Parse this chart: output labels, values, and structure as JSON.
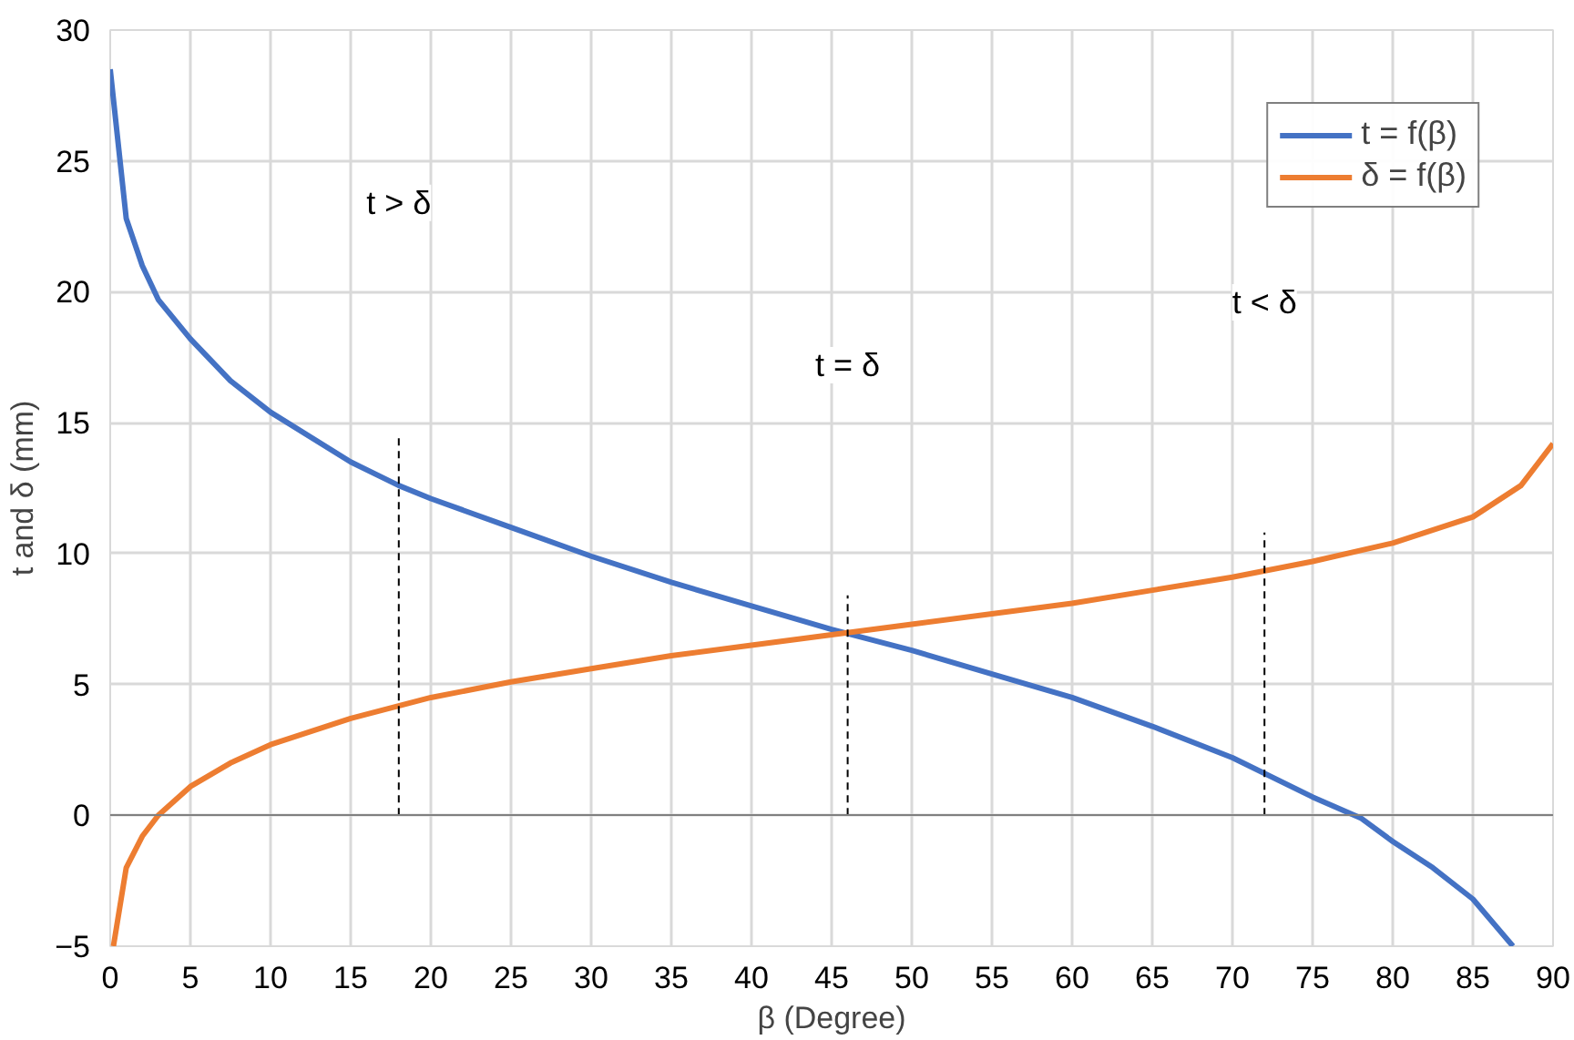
{
  "chart_data": {
    "type": "line",
    "xlabel": "β (Degree)",
    "ylabel": "t and δ (mm)",
    "xlim": [
      0,
      90
    ],
    "ylim": [
      -5,
      30
    ],
    "xticks": [
      0,
      5,
      10,
      15,
      20,
      25,
      30,
      35,
      40,
      45,
      50,
      55,
      60,
      65,
      70,
      75,
      80,
      85,
      90
    ],
    "yticks": [
      -5,
      0,
      5,
      10,
      15,
      20,
      25,
      30
    ],
    "grid": true,
    "legend": "top right",
    "line_style": "solid",
    "marker": "none",
    "series": [
      {
        "name": "t = f(β)",
        "color": "#4472c4",
        "x": [
          0,
          1,
          2,
          3,
          5,
          7.5,
          10,
          15,
          18,
          20,
          25,
          30,
          35,
          40,
          45,
          50,
          55,
          60,
          65,
          70,
          75,
          78,
          80,
          82.5,
          85,
          87.5
        ],
        "values": [
          28.5,
          22.8,
          21,
          19.7,
          18.2,
          16.6,
          15.4,
          13.5,
          12.6,
          12.1,
          11,
          9.9,
          8.9,
          8,
          7.1,
          6.3,
          5.4,
          4.5,
          3.4,
          2.2,
          0.7,
          -0.1,
          -1,
          -2,
          -3.2,
          -5
        ]
      },
      {
        "name": "δ = f(β)",
        "color": "#ed7d31",
        "x": [
          0.2,
          1,
          2,
          3,
          5,
          7.5,
          10,
          15,
          20,
          25,
          30,
          35,
          40,
          45,
          50,
          55,
          60,
          65,
          70,
          75,
          80,
          85,
          88,
          90
        ],
        "values": [
          -5,
          -2,
          -0.8,
          0,
          1.1,
          2,
          2.7,
          3.7,
          4.5,
          5.1,
          5.6,
          6.1,
          6.5,
          6.9,
          7.3,
          7.7,
          8.1,
          8.6,
          9.1,
          9.7,
          10.4,
          11.4,
          12.6,
          14.2
        ]
      }
    ],
    "ref_lines": [
      {
        "axis": "x",
        "value": 18,
        "color": "#000000",
        "line_style": "dashed"
      },
      {
        "axis": "x",
        "value": 46,
        "color": "#000000",
        "line_style": "dashed"
      },
      {
        "axis": "x",
        "value": 72,
        "color": "#000000",
        "line_style": "dashed"
      }
    ],
    "annotations": [
      {
        "text": "t > δ",
        "x": 18,
        "y": 23.4
      },
      {
        "text": "t = δ",
        "x": 46,
        "y": 17.2
      },
      {
        "text": "t < δ",
        "x": 72,
        "y": 19.6
      }
    ]
  }
}
